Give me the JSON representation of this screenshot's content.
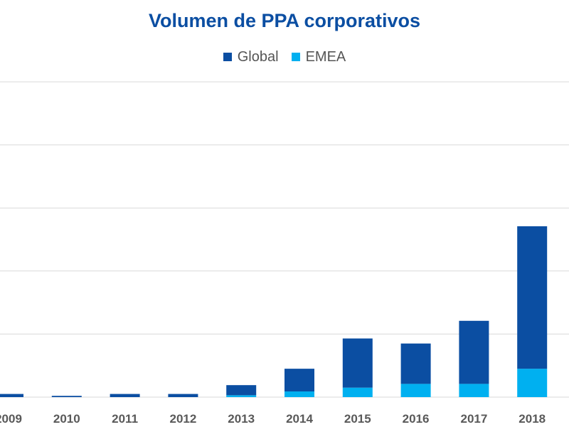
{
  "chart_data": {
    "type": "bar",
    "stacked": true,
    "title": "Volumen de PPA corporativos",
    "categories": [
      "2009",
      "2010",
      "2011",
      "2012",
      "2013",
      "2014",
      "2015",
      "2016",
      "2017",
      "2018"
    ],
    "series": [
      {
        "name": "EMEA",
        "color": "#00b0f0",
        "values": [
          0.0,
          0.0,
          0.0,
          0.0,
          0.3,
          0.9,
          1.5,
          2.1,
          2.1,
          4.5
        ]
      },
      {
        "name": "Global",
        "color": "#0b4ea2",
        "values": [
          0.5,
          0.2,
          0.5,
          0.5,
          1.6,
          3.6,
          7.8,
          6.4,
          10.0,
          22.6
        ]
      }
    ],
    "legend_order": [
      "Global",
      "EMEA"
    ],
    "ylim": [
      0,
      50
    ],
    "yticks_count": 5,
    "grid": true,
    "legend_position": "top-center",
    "xlabel": "",
    "ylabel": ""
  }
}
